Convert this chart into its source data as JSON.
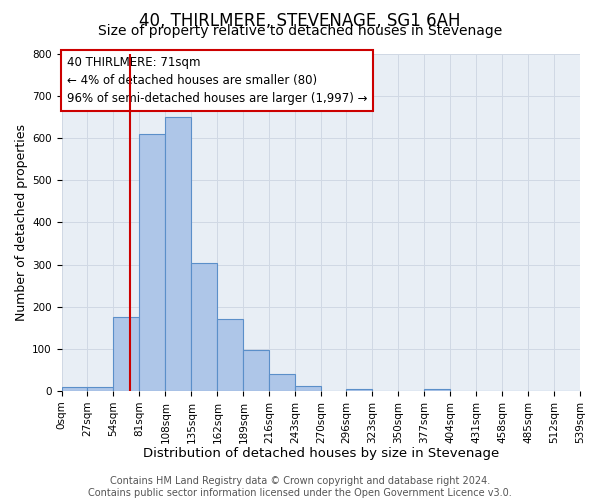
{
  "title": "40, THIRLMERE, STEVENAGE, SG1 6AH",
  "subtitle": "Size of property relative to detached houses in Stevenage",
  "xlabel": "Distribution of detached houses by size in Stevenage",
  "ylabel": "Number of detached properties",
  "bin_labels": [
    "0sqm",
    "27sqm",
    "54sqm",
    "81sqm",
    "108sqm",
    "135sqm",
    "162sqm",
    "189sqm",
    "216sqm",
    "243sqm",
    "270sqm",
    "296sqm",
    "323sqm",
    "350sqm",
    "377sqm",
    "404sqm",
    "431sqm",
    "458sqm",
    "485sqm",
    "512sqm",
    "539sqm"
  ],
  "bin_edges": [
    0,
    27,
    54,
    81,
    108,
    135,
    162,
    189,
    216,
    243,
    270,
    296,
    323,
    350,
    377,
    404,
    431,
    458,
    485,
    512,
    539
  ],
  "bar_heights": [
    10,
    10,
    175,
    610,
    650,
    305,
    170,
    97,
    40,
    13,
    0,
    5,
    0,
    0,
    5,
    0,
    0,
    0,
    0,
    0
  ],
  "bar_color": "#aec6e8",
  "bar_edge_color": "#5b8fc9",
  "property_size": 71,
  "property_line_color": "#cc0000",
  "annotation_line1": "40 THIRLMERE: 71sqm",
  "annotation_line2": "← 4% of detached houses are smaller (80)",
  "annotation_line3": "96% of semi-detached houses are larger (1,997) →",
  "annotation_box_color": "#ffffff",
  "annotation_box_edge_color": "#cc0000",
  "ylim": [
    0,
    800
  ],
  "yticks": [
    0,
    100,
    200,
    300,
    400,
    500,
    600,
    700,
    800
  ],
  "grid_color": "#d0d8e4",
  "background_color": "#e8eef5",
  "footer_text": "Contains HM Land Registry data © Crown copyright and database right 2024.\nContains public sector information licensed under the Open Government Licence v3.0.",
  "title_fontsize": 12,
  "subtitle_fontsize": 10,
  "xlabel_fontsize": 9.5,
  "ylabel_fontsize": 9,
  "annotation_fontsize": 8.5,
  "footer_fontsize": 7,
  "tick_fontsize": 7.5
}
